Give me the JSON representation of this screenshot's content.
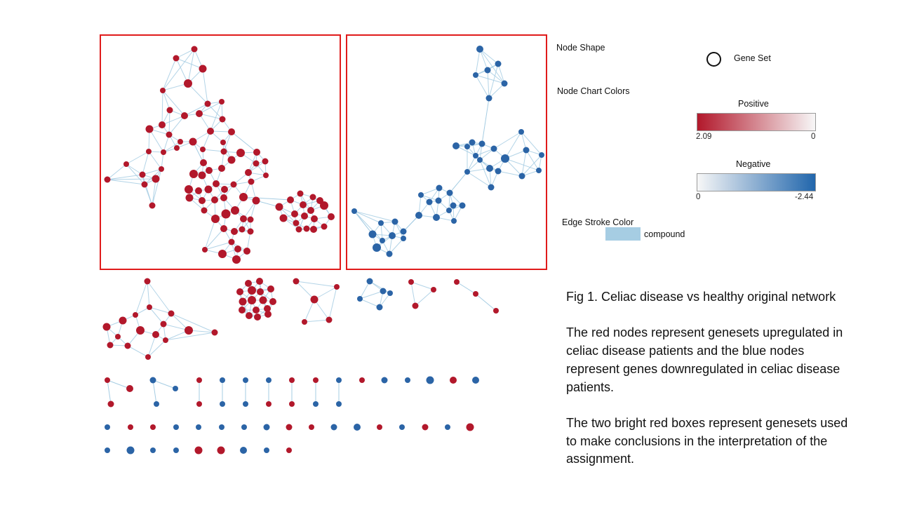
{
  "legend": {
    "node_shape_label": "Node Shape",
    "node_shape_item": "Gene Set",
    "node_colors_label": "Node Chart Colors",
    "positive": {
      "title": "Positive",
      "max_label": "2.09",
      "min_label": "0",
      "color_strong": "#b2182b",
      "color_weak": "#f7f7f7"
    },
    "negative": {
      "title": "Negative",
      "min_label": "0",
      "max_label": "-2.44",
      "color_weak": "#f7f7f7",
      "color_strong": "#2166ac"
    },
    "edge_label": "Edge Stroke Color",
    "edge_item": "compound",
    "edge_color": "#a6cde3"
  },
  "caption": {
    "title": "Fig 1. Celiac disease vs healthy original network",
    "para1": "The red nodes represent genesets upregulated in celiac disease patients and the blue nodes represent genes downregulated in celiac disease patients.",
    "para2": "The two bright red boxes represent genesets used to make conclusions in the interpretation of the assignment."
  },
  "colors": {
    "up_node": "#b2182b",
    "down_node": "#2b64a6",
    "edge": "#a6cde3",
    "highlight_box": "#e01b1b"
  }
}
